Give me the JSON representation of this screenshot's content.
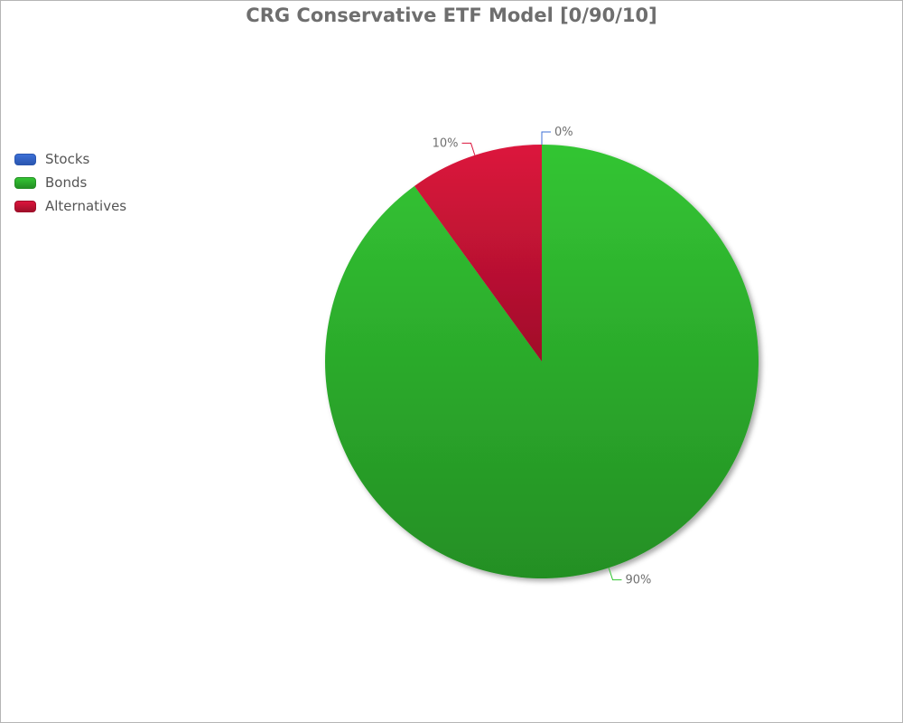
{
  "chart_data": {
    "type": "pie",
    "title": "CRG Conservative ETF Model [0/90/10]",
    "legend_position": "left",
    "series": [
      {
        "name": "Stocks",
        "value": 0,
        "label": "0%",
        "color": "#3c6fd6",
        "gradient_end": "#2a56b0"
      },
      {
        "name": "Bonds",
        "value": 90,
        "label": "90%",
        "color": "#33c533",
        "gradient_end": "#248f24"
      },
      {
        "name": "Alternatives",
        "value": 10,
        "label": "10%",
        "color": "#dc143c",
        "gradient_end": "#a00f2a"
      }
    ]
  }
}
